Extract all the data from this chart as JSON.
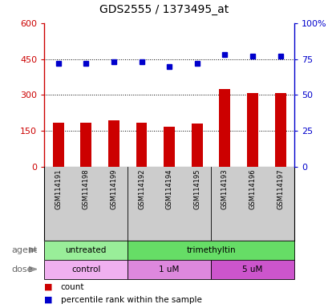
{
  "title": "GDS2555 / 1373495_at",
  "samples": [
    "GSM114191",
    "GSM114198",
    "GSM114199",
    "GSM114192",
    "GSM114194",
    "GSM114195",
    "GSM114193",
    "GSM114196",
    "GSM114197"
  ],
  "bar_values": [
    185,
    185,
    195,
    185,
    168,
    182,
    325,
    308,
    308
  ],
  "dot_values": [
    72,
    72,
    73,
    73,
    70,
    72,
    78,
    77,
    77
  ],
  "bar_color": "#cc0000",
  "dot_color": "#0000cc",
  "left_ylim": [
    0,
    600
  ],
  "right_ylim": [
    0,
    100
  ],
  "left_yticks": [
    0,
    150,
    300,
    450,
    600
  ],
  "left_ytick_labels": [
    "0",
    "150",
    "300",
    "450",
    "600"
  ],
  "right_yticks": [
    0,
    25,
    50,
    75,
    100
  ],
  "right_ytick_labels": [
    "0",
    "25",
    "50",
    "75",
    "100%"
  ],
  "hlines": [
    150,
    300,
    450
  ],
  "agent_groups": [
    {
      "label": "untreated",
      "start": 0,
      "end": 3,
      "color": "#99ee99"
    },
    {
      "label": "trimethyltin",
      "start": 3,
      "end": 9,
      "color": "#66dd66"
    }
  ],
  "dose_groups": [
    {
      "label": "control",
      "start": 0,
      "end": 3,
      "color": "#f0b0f0"
    },
    {
      "label": "1 uM",
      "start": 3,
      "end": 6,
      "color": "#dd88dd"
    },
    {
      "label": "5 uM",
      "start": 6,
      "end": 9,
      "color": "#cc55cc"
    }
  ],
  "legend_items": [
    {
      "label": "count",
      "color": "#cc0000"
    },
    {
      "label": "percentile rank within the sample",
      "color": "#0000cc"
    }
  ],
  "agent_label": "agent",
  "dose_label": "dose",
  "plot_bg": "#ffffff",
  "tick_area_bg": "#cccccc",
  "title_fontsize": 10,
  "axis_fontsize": 8,
  "label_fontsize": 8,
  "sample_fontsize": 6
}
